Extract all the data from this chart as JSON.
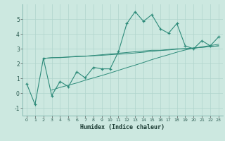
{
  "xlabel": "Humidex (Indice chaleur)",
  "x": [
    0,
    1,
    2,
    3,
    4,
    5,
    6,
    7,
    8,
    9,
    10,
    11,
    12,
    13,
    14,
    15,
    16,
    17,
    18,
    19,
    20,
    21,
    22,
    23
  ],
  "line_jagged": [
    0.65,
    -0.75,
    2.35,
    -0.15,
    0.8,
    0.45,
    1.45,
    1.05,
    1.75,
    1.65,
    1.65,
    2.8,
    4.7,
    5.5,
    4.85,
    5.3,
    4.35,
    4.05,
    4.7,
    3.2,
    3.0,
    3.55,
    3.2,
    3.8
  ],
  "line_flat1": [
    null,
    null,
    2.35,
    2.4,
    2.4,
    2.45,
    2.5,
    2.5,
    2.55,
    2.6,
    2.65,
    2.7,
    2.75,
    2.8,
    2.85,
    2.9,
    2.9,
    2.95,
    3.0,
    3.0,
    3.05,
    3.1,
    3.15,
    3.2
  ],
  "line_flat2": [
    null,
    null,
    2.35,
    2.4,
    2.42,
    2.44,
    2.47,
    2.5,
    2.53,
    2.56,
    2.6,
    2.63,
    2.67,
    2.72,
    2.77,
    2.83,
    2.88,
    2.92,
    2.97,
    3.01,
    3.05,
    3.1,
    3.15,
    3.2
  ],
  "line_linear": [
    null,
    null,
    null,
    0.22,
    0.4,
    0.55,
    0.7,
    0.88,
    1.04,
    1.2,
    1.37,
    1.55,
    1.73,
    1.9,
    2.08,
    2.27,
    2.44,
    2.6,
    2.77,
    2.92,
    3.04,
    3.13,
    3.22,
    3.3
  ],
  "color": "#2e8b7a",
  "bg_color": "#cce8e0",
  "grid_color": "#b0d4cc",
  "ylim": [
    -1.5,
    6.0
  ],
  "xlim": [
    -0.5,
    23.5
  ],
  "yticks": [
    -1,
    0,
    1,
    2,
    3,
    4,
    5
  ],
  "xticks": [
    0,
    1,
    2,
    3,
    4,
    5,
    6,
    7,
    8,
    9,
    10,
    11,
    12,
    13,
    14,
    15,
    16,
    17,
    18,
    19,
    20,
    21,
    22,
    23
  ]
}
